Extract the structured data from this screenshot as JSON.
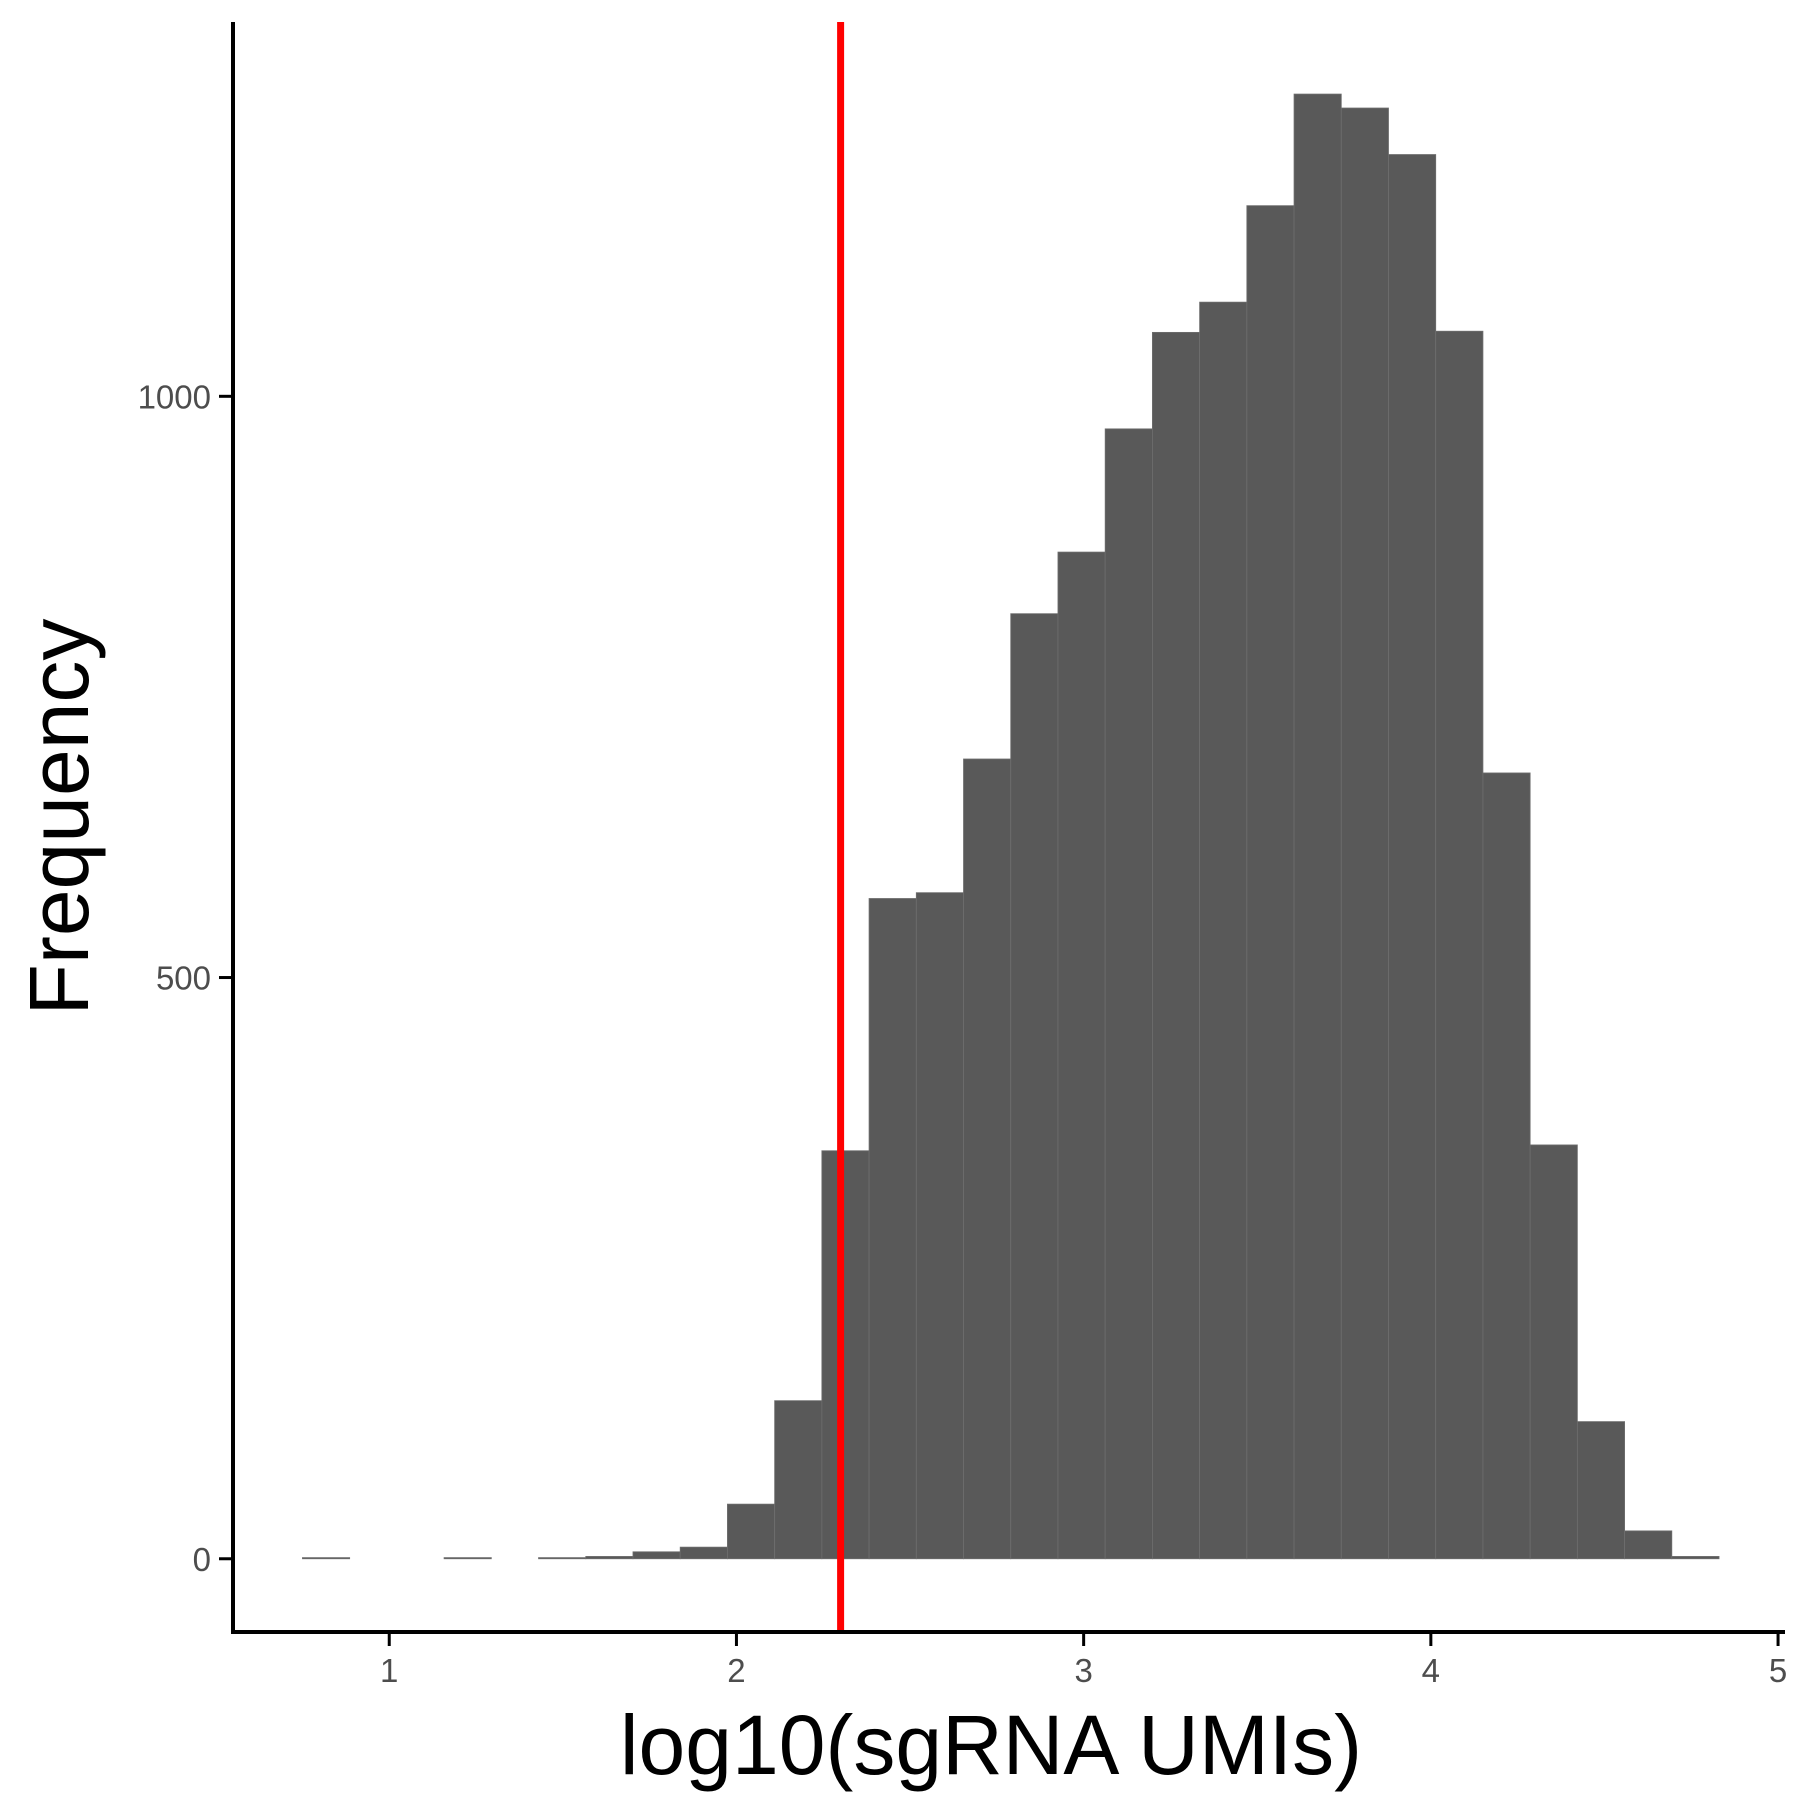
{
  "chart_data": {
    "type": "bar",
    "title": "",
    "xlabel": "log10(sgRNA UMIs)",
    "ylabel": "Frequency",
    "xlim": [
      0.55,
      5.02
    ],
    "ylim": [
      -63,
      1322
    ],
    "x_ticks": [
      1,
      2,
      3,
      4,
      5
    ],
    "x_tick_labels": [
      "1",
      "2",
      "3",
      "4",
      "5"
    ],
    "y_ticks": [
      0,
      500,
      1000
    ],
    "y_tick_labels": [
      "0",
      "500",
      "1000"
    ],
    "grid": false,
    "legend": "none",
    "bin_width": 0.136,
    "bins": [
      {
        "x0": 0.75,
        "x1": 0.886,
        "count": 1
      },
      {
        "x0": 0.886,
        "x1": 1.022,
        "count": 0
      },
      {
        "x0": 1.022,
        "x1": 1.158,
        "count": 0
      },
      {
        "x0": 1.158,
        "x1": 1.294,
        "count": 1
      },
      {
        "x0": 1.294,
        "x1": 1.43,
        "count": 0
      },
      {
        "x0": 1.43,
        "x1": 1.566,
        "count": 1
      },
      {
        "x0": 1.566,
        "x1": 1.702,
        "count": 2
      },
      {
        "x0": 1.702,
        "x1": 1.838,
        "count": 6
      },
      {
        "x0": 1.838,
        "x1": 1.974,
        "count": 10
      },
      {
        "x0": 1.974,
        "x1": 2.11,
        "count": 47
      },
      {
        "x0": 2.11,
        "x1": 2.246,
        "count": 136
      },
      {
        "x0": 2.246,
        "x1": 2.382,
        "count": 351
      },
      {
        "x0": 2.382,
        "x1": 2.518,
        "count": 568
      },
      {
        "x0": 2.518,
        "x1": 2.654,
        "count": 573
      },
      {
        "x0": 2.654,
        "x1": 2.79,
        "count": 688
      },
      {
        "x0": 2.79,
        "x1": 2.926,
        "count": 813
      },
      {
        "x0": 2.926,
        "x1": 3.062,
        "count": 866
      },
      {
        "x0": 3.062,
        "x1": 3.198,
        "count": 972
      },
      {
        "x0": 3.198,
        "x1": 3.334,
        "count": 1055
      },
      {
        "x0": 3.334,
        "x1": 3.47,
        "count": 1081
      },
      {
        "x0": 3.47,
        "x1": 3.606,
        "count": 1164
      },
      {
        "x0": 3.606,
        "x1": 3.742,
        "count": 1260
      },
      {
        "x0": 3.742,
        "x1": 3.878,
        "count": 1248
      },
      {
        "x0": 3.878,
        "x1": 4.014,
        "count": 1208
      },
      {
        "x0": 4.014,
        "x1": 4.15,
        "count": 1056
      },
      {
        "x0": 4.15,
        "x1": 4.286,
        "count": 676
      },
      {
        "x0": 4.286,
        "x1": 4.422,
        "count": 356
      },
      {
        "x0": 4.422,
        "x1": 4.558,
        "count": 118
      },
      {
        "x0": 4.558,
        "x1": 4.694,
        "count": 24
      },
      {
        "x0": 4.694,
        "x1": 4.83,
        "count": 2
      }
    ],
    "threshold": {
      "x": 2.3,
      "color": "#ff0000"
    },
    "colors": {
      "bar_fill": "#595959",
      "bar_edge": "#6e6e6e",
      "axis": "#000000",
      "tick_label": "#4d4d4d"
    }
  }
}
